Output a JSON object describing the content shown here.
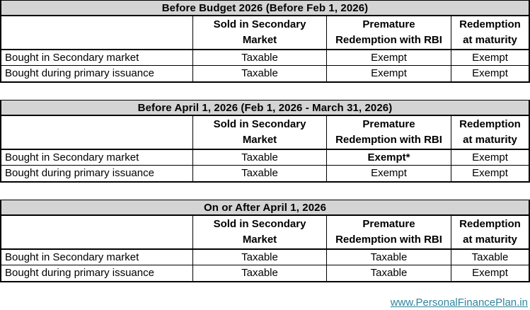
{
  "colors": {
    "title_bar_bg": "#d4d4d4",
    "border": "#000000",
    "link": "#31849B",
    "text": "#000000"
  },
  "column_headers": [
    {
      "line1": "Sold in Secondary",
      "line2": "Market"
    },
    {
      "line1": "Premature",
      "line2": "Redemption with RBI"
    },
    {
      "line1": "Redemption",
      "line2": "at maturity"
    }
  ],
  "tables": [
    {
      "title": "Before Budget 2026 (Before Feb 1, 2026)",
      "rows": [
        {
          "label": "Bought in Secondary market",
          "cells": [
            {
              "text": "Taxable",
              "weight": "400"
            },
            {
              "text": "Exempt",
              "weight": "400"
            },
            {
              "text": "Exempt",
              "weight": "400"
            }
          ]
        },
        {
          "label": "Bought during primary issuance",
          "cells": [
            {
              "text": "Taxable",
              "weight": "400"
            },
            {
              "text": "Exempt",
              "weight": "400"
            },
            {
              "text": "Exempt",
              "weight": "400"
            }
          ]
        }
      ]
    },
    {
      "title": "Before April 1, 2026 (Feb 1, 2026 - March 31, 2026)",
      "rows": [
        {
          "label": "Bought in Secondary market",
          "cells": [
            {
              "text": "Taxable",
              "weight": "400"
            },
            {
              "text": "Exempt*",
              "weight": "700"
            },
            {
              "text": "Exempt",
              "weight": "400"
            }
          ]
        },
        {
          "label": "Bought during primary issuance",
          "cells": [
            {
              "text": "Taxable",
              "weight": "400"
            },
            {
              "text": "Exempt",
              "weight": "400"
            },
            {
              "text": "Exempt",
              "weight": "400"
            }
          ]
        }
      ]
    },
    {
      "title": "On or After April 1, 2026",
      "rows": [
        {
          "label": "Bought in Secondary market",
          "cells": [
            {
              "text": "Taxable",
              "weight": "400"
            },
            {
              "text": "Taxable",
              "weight": "400"
            },
            {
              "text": "Taxable",
              "weight": "400"
            }
          ]
        },
        {
          "label": "Bought during primary issuance",
          "cells": [
            {
              "text": "Taxable",
              "weight": "400"
            },
            {
              "text": "Taxable",
              "weight": "400"
            },
            {
              "text": "Exempt",
              "weight": "400"
            }
          ]
        }
      ]
    }
  ],
  "footer": {
    "link_text": "www.PersonalFinancePlan.in"
  }
}
